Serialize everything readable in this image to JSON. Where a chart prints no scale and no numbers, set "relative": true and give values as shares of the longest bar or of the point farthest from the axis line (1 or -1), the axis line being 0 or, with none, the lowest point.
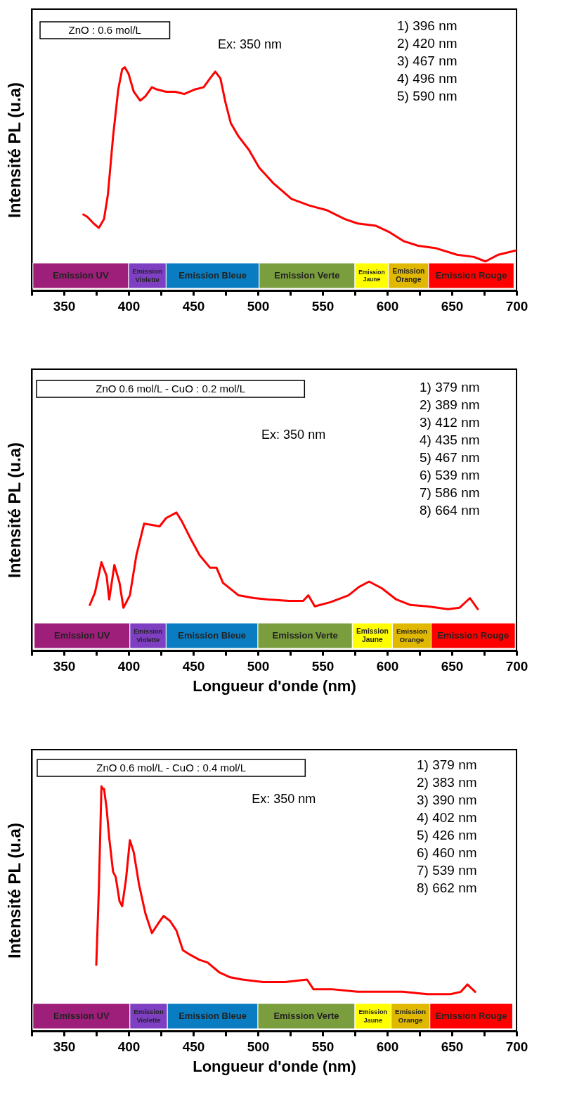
{
  "chart_data": [
    {
      "type": "line",
      "relative": true,
      "ylabel": "Intensité PL (u.a)",
      "xlim": [
        325,
        700
      ],
      "xticks": [
        {
          "value": 325,
          "label": null
        },
        350,
        {
          "value": 375,
          "label": null
        },
        400,
        {
          "value": 425,
          "label": null
        },
        450,
        {
          "value": 475,
          "label": null
        },
        500,
        {
          "value": 525,
          "label": null
        },
        550,
        {
          "value": 575,
          "label": null
        },
        600,
        {
          "value": 625,
          "label": null
        },
        650,
        {
          "value": 675,
          "label": null
        },
        700
      ],
      "x": [
        365,
        368,
        373,
        377,
        381,
        384,
        388,
        392,
        395,
        397,
        400,
        404,
        409,
        413,
        418,
        422,
        429,
        436,
        443,
        451,
        458,
        463,
        467,
        471,
        475,
        479,
        485,
        493,
        501,
        512,
        526,
        540,
        553,
        567,
        577,
        591,
        602,
        613,
        624,
        637,
        654,
        667,
        676,
        686,
        700
      ],
      "series": [
        {
          "color": "#ff0000",
          "values": [
            0.34,
            0.33,
            0.3,
            0.28,
            0.32,
            0.43,
            0.69,
            0.9,
            0.99,
            1.0,
            0.97,
            0.89,
            0.85,
            0.87,
            0.91,
            0.9,
            0.89,
            0.89,
            0.88,
            0.9,
            0.91,
            0.95,
            0.98,
            0.95,
            0.84,
            0.75,
            0.69,
            0.63,
            0.55,
            0.48,
            0.41,
            0.38,
            0.36,
            0.32,
            0.3,
            0.29,
            0.26,
            0.22,
            0.2,
            0.19,
            0.16,
            0.15,
            0.13,
            0.16,
            0.18
          ]
        }
      ],
      "bands": [
        {
          "axis": "x",
          "from": 326,
          "to": 400,
          "label": "Emission UV",
          "color": "#9e1f7a"
        },
        {
          "axis": "x",
          "from": 400,
          "to": 429,
          "label": "Emission Violette",
          "color": "#7e3fc2"
        },
        {
          "axis": "x",
          "from": 429,
          "to": 501,
          "label": "Emission Bleue",
          "color": "#0a7dc2"
        },
        {
          "axis": "x",
          "from": 501,
          "to": 575,
          "label": "Emission Verte",
          "color": "#7a9e3e"
        },
        {
          "axis": "x",
          "from": 575,
          "to": 601,
          "label": "Emission Jaune",
          "color": "#ffff00"
        },
        {
          "axis": "x",
          "from": 601,
          "to": 632,
          "label": "Emission Orange",
          "color": "#e0b800"
        },
        {
          "axis": "x",
          "from": 632,
          "to": 698,
          "label": "Emission Rouge",
          "color": "#ff0000"
        }
      ],
      "annotations": [
        "ZnO : 0.6 mol/L",
        "Ex: 350 nm",
        "1) 396 nm",
        "2) 420 nm",
        "3) 467 nm",
        "4) 496 nm",
        "5) 590 nm"
      ]
    },
    {
      "type": "line",
      "relative": true,
      "ylabel": "Intensité PL (u.a)",
      "xlabel": "Longueur d'onde (nm)",
      "xlim": [
        325,
        700
      ],
      "xticks": [
        {
          "value": 325,
          "label": null
        },
        350,
        {
          "value": 375,
          "label": null
        },
        400,
        {
          "value": 425,
          "label": null
        },
        450,
        {
          "value": 475,
          "label": null
        },
        500,
        {
          "value": 525,
          "label": null
        },
        550,
        {
          "value": 575,
          "label": null
        },
        600,
        {
          "value": 625,
          "label": null
        },
        650,
        {
          "value": 675,
          "label": null
        },
        700
      ],
      "x": [
        370,
        374,
        379,
        383,
        385,
        389,
        393,
        396,
        401,
        406,
        412,
        418,
        424,
        429,
        437,
        441,
        448,
        455,
        463,
        468,
        473,
        481,
        485,
        497,
        508,
        524,
        535,
        539,
        544,
        556,
        570,
        578,
        586,
        596,
        607,
        618,
        631,
        647,
        656,
        664,
        670
      ],
      "series": [
        {
          "color": "#ff0000",
          "values": [
            0.33,
            0.42,
            0.64,
            0.54,
            0.37,
            0.62,
            0.49,
            0.31,
            0.4,
            0.69,
            0.92,
            0.91,
            0.9,
            0.96,
            1.0,
            0.94,
            0.81,
            0.69,
            0.6,
            0.6,
            0.49,
            0.43,
            0.4,
            0.38,
            0.37,
            0.36,
            0.36,
            0.4,
            0.32,
            0.35,
            0.4,
            0.46,
            0.5,
            0.45,
            0.37,
            0.33,
            0.32,
            0.3,
            0.31,
            0.38,
            0.3
          ]
        }
      ],
      "bands": [
        {
          "axis": "x",
          "from": 327,
          "to": 401,
          "label": "Emission UV",
          "color": "#9e1f7a"
        },
        {
          "axis": "x",
          "from": 401,
          "to": 429,
          "label": "Emission Violette",
          "color": "#7e3fc2"
        },
        {
          "axis": "x",
          "from": 429,
          "to": 500,
          "label": "Emission Bleue",
          "color": "#0a7dc2"
        },
        {
          "axis": "x",
          "from": 500,
          "to": 573,
          "label": "Emission Verte",
          "color": "#7a9e3e"
        },
        {
          "axis": "x",
          "from": 573,
          "to": 604,
          "label": "Emission Jaune",
          "color": "#ffff00"
        },
        {
          "axis": "x",
          "from": 604,
          "to": 634,
          "label": "Emission Orange",
          "color": "#e0b800"
        },
        {
          "axis": "x",
          "from": 634,
          "to": 699,
          "label": "Emission Rouge",
          "color": "#ff0000"
        }
      ],
      "annotations": [
        "ZnO 0.6 mol/L - CuO : 0.2 mol/L",
        "Ex: 350 nm",
        "1) 379 nm",
        "2) 389 nm",
        "3) 412 nm",
        "4) 435 nm",
        "5) 467 nm",
        "6) 539 nm",
        "7) 586 nm",
        "8) 664 nm"
      ]
    },
    {
      "type": "line",
      "relative": true,
      "ylabel": "Intensité PL (u.a)",
      "xlabel": "Longueur d'onde (nm)",
      "xlim": [
        325,
        700
      ],
      "xticks": [
        {
          "value": 325,
          "label": null
        },
        350,
        {
          "value": 375,
          "label": null
        },
        400,
        {
          "value": 425,
          "label": null
        },
        450,
        {
          "value": 475,
          "label": null
        },
        500,
        {
          "value": 525,
          "label": null
        },
        550,
        {
          "value": 575,
          "label": null
        },
        600,
        {
          "value": 625,
          "label": null
        },
        650,
        {
          "value": 675,
          "label": null
        },
        700
      ],
      "x": [
        375,
        377,
        379,
        380,
        381,
        383,
        385,
        388,
        390,
        393,
        395,
        398,
        401,
        404,
        408,
        413,
        418,
        423,
        427,
        432,
        437,
        442,
        448,
        455,
        461,
        470,
        478,
        488,
        504,
        521,
        538,
        543,
        558,
        577,
        596,
        612,
        631,
        649,
        657,
        662,
        666,
        668
      ],
      "series": [
        {
          "color": "#ff0000",
          "values": [
            0.27,
            0.58,
            1.0,
            0.99,
            0.99,
            0.91,
            0.79,
            0.65,
            0.63,
            0.53,
            0.51,
            0.62,
            0.78,
            0.73,
            0.6,
            0.48,
            0.4,
            0.44,
            0.47,
            0.45,
            0.41,
            0.33,
            0.31,
            0.29,
            0.28,
            0.24,
            0.22,
            0.21,
            0.2,
            0.2,
            0.21,
            0.17,
            0.17,
            0.16,
            0.16,
            0.16,
            0.15,
            0.15,
            0.16,
            0.19,
            0.17,
            0.16
          ]
        }
      ],
      "bands": [
        {
          "axis": "x",
          "from": 326,
          "to": 401,
          "label": "Emission UV",
          "color": "#9e1f7a"
        },
        {
          "axis": "x",
          "from": 401,
          "to": 430,
          "label": "Emission Violette",
          "color": "#7e3fc2"
        },
        {
          "axis": "x",
          "from": 430,
          "to": 500,
          "label": "Emission Bleue",
          "color": "#0a7dc2"
        },
        {
          "axis": "x",
          "from": 500,
          "to": 575,
          "label": "Emission Verte",
          "color": "#7a9e3e"
        },
        {
          "axis": "x",
          "from": 575,
          "to": 603,
          "label": "Emission Jaune",
          "color": "#ffff00"
        },
        {
          "axis": "x",
          "from": 603,
          "to": 633,
          "label": "Emission Orange",
          "color": "#e0b800"
        },
        {
          "axis": "x",
          "from": 633,
          "to": 697,
          "label": "Emission Rouge",
          "color": "#ff0000"
        }
      ],
      "annotations": [
        "ZnO 0.6 mol/L - CuO : 0.4 mol/L",
        "Ex: 350 nm",
        "1) 379 nm",
        "2) 383 nm",
        "3) 390 nm",
        "4) 402 nm",
        "5) 426 nm",
        "6) 460 nm",
        "7) 539 nm",
        "8) 662 nm"
      ]
    }
  ]
}
